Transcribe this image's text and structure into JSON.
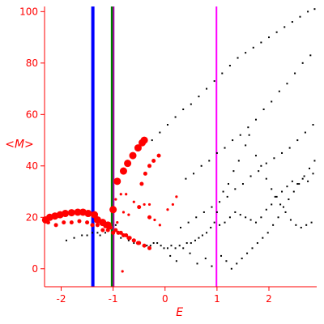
{
  "chart_data": {
    "type": "scatter",
    "title": "",
    "xlabel": "E",
    "ylabel": "<M>",
    "xlim": [
      -2.32,
      2.92
    ],
    "ylim": [
      -7,
      102
    ],
    "x_ticks": [
      -2,
      -1,
      0,
      1,
      2
    ],
    "x_tick_labels": [
      "-2",
      "-1",
      "0",
      "1",
      "2"
    ],
    "y_ticks": [
      0,
      20,
      40,
      60,
      80,
      100
    ],
    "y_tick_labels": [
      "0",
      "20",
      "40",
      "60",
      "80",
      "100"
    ],
    "grid": false,
    "legend": "none",
    "colors": {
      "axis": "#ff0000",
      "black_points": "#000000",
      "red_points": "#ff0000",
      "blue_line": "#0000ff",
      "green_line": "#008000",
      "purple_line": "#aa00aa",
      "magenta_line": "#ff00ff"
    },
    "vertical_lines": [
      {
        "x": -1.39,
        "color": "#0000ff",
        "width": 4
      },
      {
        "x": -1.02,
        "color": "#008000",
        "width": 3
      },
      {
        "x": -0.99,
        "color": "#aa00aa",
        "width": 2
      },
      {
        "x": 0.99,
        "color": "#ff00ff",
        "width": 2
      }
    ],
    "series": [
      {
        "color": "#ff0000",
        "marker": "large",
        "x": [
          -2.3,
          -2.22,
          -2.12,
          -2.02,
          -1.92,
          -1.8,
          -1.68,
          -1.58,
          -1.48,
          -1.36,
          -1.3,
          -1.2,
          -1.1,
          -1.0,
          -0.92,
          -0.8,
          -0.72,
          -0.62,
          -0.52,
          -0.44,
          -0.4
        ],
        "y": [
          19,
          20,
          20.5,
          21,
          21.5,
          21.8,
          22,
          22,
          21.5,
          21,
          19,
          18,
          17,
          23,
          34,
          38,
          41,
          44,
          47,
          49,
          50
        ]
      },
      {
        "color": "#ff0000",
        "marker": "medium",
        "x": [
          -2.25,
          -2.1,
          -1.95,
          -1.8,
          -1.65,
          -1.5,
          -1.4,
          -1.3,
          -1.15,
          -1.05,
          -0.95,
          -0.85,
          -0.75,
          -0.68,
          -0.6,
          -0.52,
          -0.45,
          -0.38,
          -0.3,
          -0.22,
          -0.12,
          -1.2,
          -1.1,
          -1.0,
          -0.9,
          -0.8,
          -0.7,
          -0.6,
          -0.5,
          -0.4,
          -0.3,
          -0.5,
          -0.3
        ],
        "y": [
          18,
          17,
          18,
          18,
          18.5,
          18,
          17,
          17,
          16.5,
          16,
          15,
          14,
          13,
          12,
          11,
          10,
          33,
          37,
          40,
          42,
          44,
          15,
          15,
          14,
          14,
          13,
          12,
          11,
          10,
          9,
          8,
          24,
          20
        ]
      },
      {
        "color": "#ff0000",
        "marker": "small",
        "x": [
          -0.92,
          -0.88,
          -0.82,
          -0.95,
          -0.85,
          -0.8,
          -0.7,
          -0.6,
          -0.4,
          -0.3,
          -0.2,
          -0.1,
          0.05,
          0.15,
          0.22,
          -0.75
        ],
        "y": [
          18,
          14,
          -1,
          27,
          29,
          22,
          21,
          26,
          25,
          25,
          19,
          17,
          23,
          25,
          28,
          29
        ]
      },
      {
        "color": "#000000",
        "marker": "dot",
        "x": [
          -1.9,
          -1.75,
          -1.6,
          -1.5,
          -1.4,
          -1.3,
          -1.25,
          -1.15,
          -1.1,
          -0.95,
          -0.85,
          -0.7,
          -0.6,
          -0.5,
          -0.42,
          -0.35,
          -0.28,
          -0.22,
          -0.15,
          -0.08,
          -0.02,
          0.05,
          0.12,
          0.2,
          0.28,
          0.35,
          0.42,
          0.5,
          0.58,
          0.65,
          0.72,
          0.8,
          0.88,
          0.95,
          1.05,
          1.15,
          1.25,
          1.35,
          1.45,
          1.55,
          1.65,
          1.75,
          1.85,
          1.95,
          2.05,
          2.15,
          2.25,
          2.35,
          2.45,
          2.55,
          2.65,
          2.75,
          2.85,
          -0.25,
          -0.1,
          0.05,
          0.2,
          0.35,
          0.5,
          0.65,
          0.8,
          0.95,
          1.1,
          1.25,
          1.4,
          1.55,
          1.7,
          1.85,
          2.0,
          2.15,
          2.3,
          2.45,
          2.6,
          2.75,
          2.88,
          0.4,
          0.55,
          0.7,
          0.85,
          1.0,
          1.15,
          1.3,
          1.45,
          1.6,
          1.75,
          1.9,
          2.05,
          2.2,
          2.35,
          2.5,
          2.65,
          2.8,
          0.3,
          0.45,
          0.6,
          0.75,
          0.9,
          1.05,
          1.2,
          1.35,
          1.5,
          1.65,
          1.8,
          1.95,
          2.1,
          2.25,
          2.4,
          2.55,
          2.7,
          2.85,
          1.0,
          1.12,
          1.22,
          1.32,
          1.42,
          1.55,
          1.62,
          1.75,
          1.85,
          1.95,
          2.05,
          2.12,
          2.22,
          2.32,
          2.42,
          2.52,
          2.62,
          2.72,
          2.82,
          0.1,
          0.22,
          0.48,
          0.62,
          0.78,
          0.9,
          1.08,
          1.18,
          1.28,
          1.38,
          1.48,
          1.58,
          1.68,
          1.78,
          1.88,
          1.98,
          2.08,
          2.18,
          2.28,
          2.38,
          2.48,
          2.58,
          2.68,
          2.78,
          2.88
        ],
        "y": [
          11,
          12,
          13,
          13,
          14,
          14,
          13,
          14,
          15,
          17,
          12,
          11,
          10,
          10,
          9,
          9,
          9,
          10,
          10,
          9,
          8,
          8,
          9,
          8,
          9,
          8,
          10,
          10,
          11,
          12,
          13,
          14,
          16,
          18,
          17,
          18,
          20,
          22,
          21,
          20,
          19,
          18,
          20,
          23,
          25,
          28,
          30,
          32,
          34,
          33,
          35,
          34,
          37,
          50,
          53,
          56,
          59,
          62,
          64,
          67,
          70,
          73,
          76,
          79,
          82,
          84,
          86,
          88,
          90,
          92,
          94,
          96,
          98,
          100,
          101,
          35,
          37,
          40,
          42,
          45,
          47,
          50,
          52,
          55,
          58,
          62,
          65,
          69,
          72,
          76,
          80,
          83,
          16,
          18,
          20,
          22,
          24,
          26,
          28,
          31,
          33,
          36,
          38,
          41,
          43,
          45,
          47,
          50,
          53,
          56,
          22,
          30,
          33,
          38,
          42,
          48,
          52,
          44,
          40,
          35,
          31,
          28,
          25,
          22,
          19,
          17,
          16,
          17,
          18,
          5,
          3,
          6,
          2,
          4,
          1,
          5,
          3,
          0,
          2,
          4,
          6,
          8,
          10,
          12,
          14,
          17,
          20,
          24,
          27,
          30,
          33,
          36,
          39,
          42
        ]
      }
    ]
  }
}
